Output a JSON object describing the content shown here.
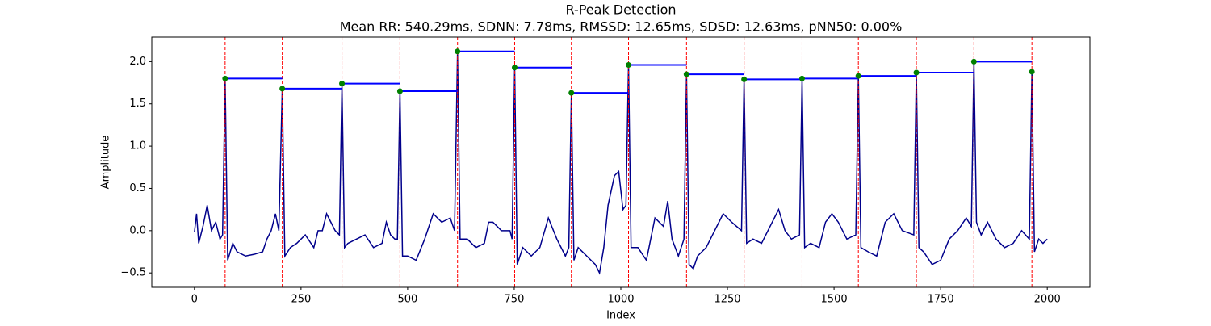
{
  "chart_data": {
    "type": "line",
    "title": "R-Peak Detection",
    "subtitle": "Mean RR: 540.29ms, SDNN: 7.78ms, RMSSD: 12.65ms, SDSD: 12.63ms, pNN50: 0.00%",
    "xlabel": "Index",
    "ylabel": "Amplitude",
    "xlim": [
      -100,
      2100
    ],
    "ylim": [
      -0.67,
      2.29
    ],
    "xticks": [
      0,
      250,
      500,
      750,
      1000,
      1250,
      1500,
      1750,
      2000
    ],
    "yticks": [
      {
        "value": -0.5,
        "label": "−0.5"
      },
      {
        "value": 0,
        "label": "0.0"
      },
      0.5,
      {
        "value": 1,
        "label": "1.0"
      },
      1.5,
      {
        "value": 2,
        "label": "2.0"
      }
    ],
    "color": "#00008b",
    "x": [
      0,
      5,
      10,
      20,
      30,
      40,
      50,
      60,
      66,
      72,
      78,
      90,
      100,
      120,
      140,
      160,
      170,
      180,
      190,
      198,
      206,
      212,
      225,
      240,
      260,
      280,
      290,
      300,
      310,
      320,
      330,
      340,
      346,
      352,
      360,
      380,
      400,
      420,
      440,
      450,
      460,
      470,
      476,
      482,
      488,
      500,
      520,
      540,
      560,
      580,
      600,
      610,
      617,
      623,
      640,
      660,
      680,
      690,
      700,
      720,
      740,
      745,
      751,
      757,
      770,
      790,
      810,
      830,
      850,
      870,
      878,
      884,
      890,
      900,
      920,
      940,
      950,
      960,
      970,
      985,
      995,
      1005,
      1012,
      1018,
      1024,
      1040,
      1060,
      1080,
      1100,
      1110,
      1120,
      1135,
      1148,
      1154,
      1160,
      1170,
      1180,
      1200,
      1220,
      1240,
      1260,
      1283,
      1289,
      1295,
      1310,
      1330,
      1350,
      1370,
      1385,
      1400,
      1419,
      1425,
      1431,
      1445,
      1465,
      1480,
      1495,
      1510,
      1530,
      1551,
      1557,
      1563,
      1580,
      1600,
      1620,
      1640,
      1660,
      1687,
      1693,
      1699,
      1710,
      1730,
      1750,
      1770,
      1790,
      1810,
      1822,
      1828,
      1834,
      1845,
      1860,
      1880,
      1900,
      1920,
      1940,
      1958,
      1964,
      1970,
      1980,
      1990,
      2000
    ],
    "values": [
      -0.02,
      0.2,
      -0.15,
      0.05,
      0.3,
      0.0,
      0.1,
      -0.1,
      -0.05,
      1.8,
      -0.35,
      -0.15,
      -0.25,
      -0.3,
      -0.28,
      -0.25,
      -0.1,
      0.0,
      0.2,
      0.0,
      1.68,
      -0.3,
      -0.2,
      -0.15,
      -0.05,
      -0.2,
      0.0,
      0.0,
      0.2,
      0.1,
      0.0,
      -0.05,
      1.74,
      -0.2,
      -0.15,
      -0.1,
      -0.05,
      -0.2,
      -0.15,
      0.1,
      -0.05,
      -0.1,
      -0.1,
      1.65,
      -0.3,
      -0.3,
      -0.35,
      -0.1,
      0.2,
      0.1,
      0.15,
      0.0,
      2.12,
      -0.1,
      -0.1,
      -0.2,
      -0.15,
      0.1,
      0.1,
      0.0,
      0.0,
      -0.1,
      1.93,
      -0.4,
      -0.2,
      -0.3,
      -0.2,
      0.15,
      -0.1,
      -0.3,
      -0.2,
      1.63,
      -0.35,
      -0.2,
      -0.3,
      -0.4,
      -0.5,
      -0.2,
      0.3,
      0.65,
      0.7,
      0.25,
      0.3,
      1.96,
      -0.2,
      -0.2,
      -0.35,
      0.15,
      0.05,
      0.35,
      -0.1,
      -0.3,
      -0.1,
      1.85,
      -0.4,
      -0.45,
      -0.3,
      -0.2,
      0.0,
      0.2,
      0.1,
      0.0,
      1.79,
      -0.15,
      -0.1,
      -0.15,
      0.05,
      0.25,
      0.0,
      -0.1,
      -0.05,
      1.8,
      -0.2,
      -0.15,
      -0.2,
      0.1,
      0.2,
      0.1,
      -0.1,
      -0.05,
      1.83,
      -0.2,
      -0.25,
      -0.3,
      0.1,
      0.2,
      0.0,
      -0.05,
      1.87,
      -0.2,
      -0.25,
      -0.4,
      -0.35,
      -0.1,
      0.0,
      0.15,
      0.05,
      2.0,
      0.1,
      -0.05,
      0.1,
      -0.1,
      -0.2,
      -0.15,
      0.0,
      -0.1,
      1.88,
      -0.25,
      -0.1,
      -0.15,
      -0.1
    ],
    "peaks": {
      "x": [
        72,
        206,
        346,
        482,
        617,
        751,
        884,
        1018,
        1154,
        1289,
        1425,
        1557,
        1693,
        1828,
        1964
      ],
      "values": [
        1.8,
        1.68,
        1.74,
        1.65,
        2.12,
        1.93,
        1.63,
        1.96,
        1.85,
        1.79,
        1.8,
        1.83,
        1.87,
        2.0,
        1.88
      ],
      "color": "#008000",
      "line_color": "#ff0000",
      "rr_color": "#0000ff"
    }
  }
}
